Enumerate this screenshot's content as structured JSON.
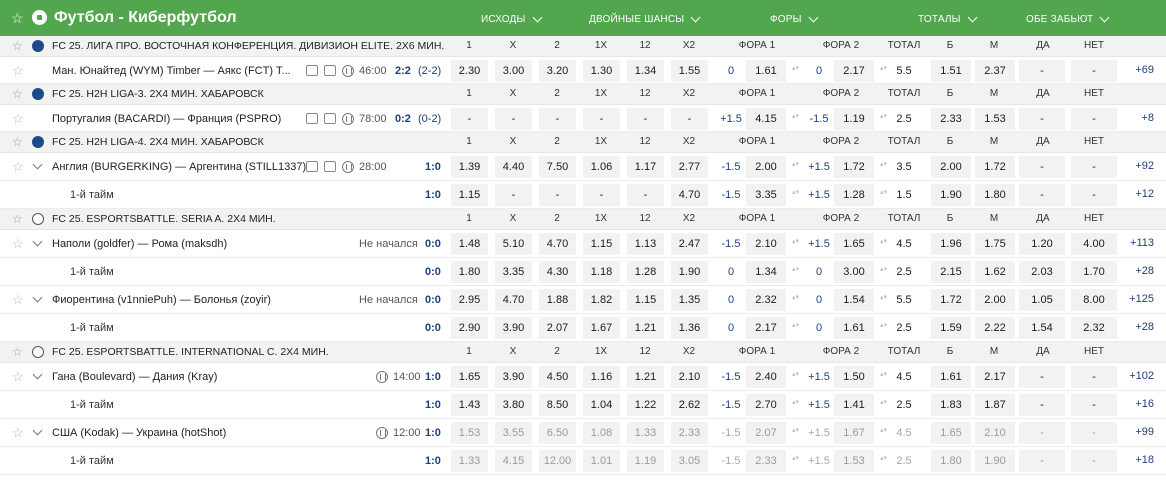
{
  "header": {
    "title": "Футбол - Киберфутбол",
    "groups": [
      "ИСХОДЫ",
      "ДВОЙНЫЕ ШАНСЫ",
      "ФОРЫ",
      "ТОТАЛЫ",
      "ОБЕ ЗАБЬЮТ"
    ]
  },
  "col_labels": [
    "1",
    "X",
    "2",
    "1X",
    "12",
    "X2",
    "ФОРА 1",
    "ФОРА 2",
    "ТОТАЛ",
    "Б",
    "М",
    "ДА",
    "НЕТ"
  ],
  "leagues": [
    {
      "name": "FC 25. ЛИГА ПРО. ВОСТОЧНАЯ КОНФЕРЕНЦИЯ. ДИВИЗИОН ELITE. 2Х6 МИН. ...",
      "icon": "league-icon",
      "events": [
        {
          "title": "Ман. Юнайтед (WYM) Timber — Аякс (FCT) T...",
          "time": "46:00",
          "score": "2:2",
          "score_paren": "(2-2)",
          "odds": [
            "2.30",
            "3.00",
            "3.20",
            "1.30",
            "1.34",
            "1.55"
          ],
          "h1": "0",
          "o_h1": "1.61",
          "h2": "0",
          "o_h2": "2.17",
          "total": "5.5",
          "o_over": "1.51",
          "o_under": "2.37",
          "yes": "-",
          "no": "-",
          "more": "+69",
          "media": true,
          "chev": false
        }
      ]
    },
    {
      "name": "FC 25. H2H LIGA-3. 2Х4 МИН. ХАБАРОВСК",
      "icon": "league-icon",
      "events": [
        {
          "title": "Португалия (BACARDI) — Франция (PSPRO)",
          "time": "78:00",
          "score": "0:2",
          "score_paren": "(0-2)",
          "odds": [
            "-",
            "-",
            "-",
            "-",
            "-",
            "-"
          ],
          "h1": "+1.5",
          "o_h1": "4.15",
          "h2": "-1.5",
          "o_h2": "1.19",
          "total": "2.5",
          "o_over": "2.33",
          "o_under": "1.53",
          "yes": "-",
          "no": "-",
          "more": "+8",
          "media": true,
          "chev": false
        }
      ]
    },
    {
      "name": "FC 25. H2H LIGA-4. 2Х4 МИН. ХАБАРОВСК",
      "icon": "league-icon",
      "events": [
        {
          "title": "Англия (BURGERKING) — Аргентина (STILL1337)",
          "time": "28:00",
          "score": "1:0",
          "score_paren": "",
          "odds": [
            "1.39",
            "4.40",
            "7.50",
            "1.06",
            "1.17",
            "2.77"
          ],
          "h1": "-1.5",
          "o_h1": "2.00",
          "h2": "+1.5",
          "o_h2": "1.72",
          "total": "3.5",
          "o_over": "2.00",
          "o_under": "1.72",
          "yes": "-",
          "no": "-",
          "more": "+92",
          "media": true,
          "chev": true
        },
        {
          "title": "1-й тайм",
          "sub": true,
          "score": "1:0",
          "odds": [
            "1.15",
            "-",
            "-",
            "-",
            "-",
            "4.70"
          ],
          "h1": "-1.5",
          "o_h1": "3.35",
          "h2": "+1.5",
          "o_h2": "1.28",
          "total": "1.5",
          "o_over": "1.90",
          "o_under": "1.80",
          "yes": "-",
          "no": "-",
          "more": "+12"
        }
      ]
    },
    {
      "name": "FC 25. ESPORTSBATTLE. SERIA A. 2Х4 МИН.",
      "icon": "ea-icon",
      "events": [
        {
          "title": "Наполи (goldfer) — Рома (maksdh)",
          "status": "Не начался",
          "score": "0:0",
          "odds": [
            "1.48",
            "5.10",
            "4.70",
            "1.15",
            "1.13",
            "2.47"
          ],
          "h1": "-1.5",
          "o_h1": "2.10",
          "h2": "+1.5",
          "o_h2": "1.65",
          "total": "4.5",
          "o_over": "1.96",
          "o_under": "1.75",
          "yes": "1.20",
          "no": "4.00",
          "more": "+113",
          "chev": true
        },
        {
          "title": "1-й тайм",
          "sub": true,
          "score": "0:0",
          "odds": [
            "1.80",
            "3.35",
            "4.30",
            "1.18",
            "1.28",
            "1.90"
          ],
          "h1": "0",
          "o_h1": "1.34",
          "h2": "0",
          "o_h2": "3.00",
          "total": "2.5",
          "o_over": "2.15",
          "o_under": "1.62",
          "yes": "2.03",
          "no": "1.70",
          "more": "+28"
        },
        {
          "title": "Фиорентина (v1nniePuh) — Болонья (zoyir)",
          "status": "Не начался",
          "score": "0:0",
          "odds": [
            "2.95",
            "4.70",
            "1.88",
            "1.82",
            "1.15",
            "1.35"
          ],
          "h1": "0",
          "o_h1": "2.32",
          "h2": "0",
          "o_h2": "1.54",
          "total": "5.5",
          "o_over": "1.72",
          "o_under": "2.00",
          "yes": "1.05",
          "no": "8.00",
          "more": "+125",
          "chev": true
        },
        {
          "title": "1-й тайм",
          "sub": true,
          "score": "0:0",
          "odds": [
            "2.90",
            "3.90",
            "2.07",
            "1.67",
            "1.21",
            "1.36"
          ],
          "h1": "0",
          "o_h1": "2.17",
          "h2": "0",
          "o_h2": "1.61",
          "total": "2.5",
          "o_over": "1.59",
          "o_under": "2.22",
          "yes": "1.54",
          "no": "2.32",
          "more": "+28"
        }
      ]
    },
    {
      "name": "FC 25. ESPORTSBATTLE. INTERNATIONAL C. 2Х4 МИН.",
      "icon": "ea-icon",
      "events": [
        {
          "title": "Гана (Boulevard) — Дания (Kray)",
          "time": "14:00",
          "score": "1:0",
          "odds": [
            "1.65",
            "3.90",
            "4.50",
            "1.16",
            "1.21",
            "2.10"
          ],
          "h1": "-1.5",
          "o_h1": "2.40",
          "h2": "+1.5",
          "o_h2": "1.50",
          "total": "4.5",
          "o_over": "1.61",
          "o_under": "2.17",
          "yes": "-",
          "no": "-",
          "more": "+102",
          "chev": true
        },
        {
          "title": "1-й тайм",
          "sub": true,
          "score": "1:0",
          "odds": [
            "1.43",
            "3.80",
            "8.50",
            "1.04",
            "1.22",
            "2.62"
          ],
          "h1": "-1.5",
          "o_h1": "2.70",
          "h2": "+1.5",
          "o_h2": "1.41",
          "total": "2.5",
          "o_over": "1.83",
          "o_under": "1.87",
          "yes": "-",
          "no": "-",
          "more": "+16"
        },
        {
          "title": "США (Kodak) — Украина (hotShot)",
          "time": "12:00",
          "score": "1:0",
          "dim": true,
          "odds": [
            "1.53",
            "3.55",
            "6.50",
            "1.08",
            "1.33",
            "2.33"
          ],
          "h1": "-1.5",
          "o_h1": "2.07",
          "h2": "+1.5",
          "o_h2": "1.67",
          "total": "4.5",
          "o_over": "1.65",
          "o_under": "2.10",
          "yes": "-",
          "no": "-",
          "more": "+99",
          "chev": true
        },
        {
          "title": "1-й тайм",
          "sub": true,
          "score": "1:0",
          "dim": true,
          "odds": [
            "1.33",
            "4.15",
            "12.00",
            "1.01",
            "1.19",
            "3.05"
          ],
          "h1": "-1.5",
          "o_h1": "2.33",
          "h2": "+1.5",
          "o_h2": "1.53",
          "total": "2.5",
          "o_over": "1.80",
          "o_under": "1.90",
          "yes": "-",
          "no": "-",
          "more": "+18"
        }
      ]
    }
  ]
}
